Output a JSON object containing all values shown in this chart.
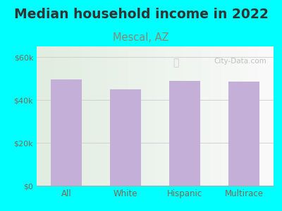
{
  "title": "Median household income in 2022",
  "subtitle": "Mescal, AZ",
  "categories": [
    "All",
    "White",
    "Hispanic",
    "Multirace"
  ],
  "values": [
    49500,
    45000,
    49000,
    48500
  ],
  "bar_color": "#c4afd8",
  "background_outer": "#00ffff",
  "yticks": [
    0,
    20000,
    40000,
    60000
  ],
  "ytick_labels": [
    "$0",
    "$20k",
    "$40k",
    "$60k"
  ],
  "ylim": [
    0,
    65000
  ],
  "title_fontsize": 13.5,
  "subtitle_fontsize": 10.5,
  "title_color": "#333333",
  "subtitle_color": "#888877",
  "tick_color": "#7a6a5a",
  "grid_color": "#cccccc",
  "watermark": "City-Data.com",
  "watermark_color": "#bbbbbb"
}
